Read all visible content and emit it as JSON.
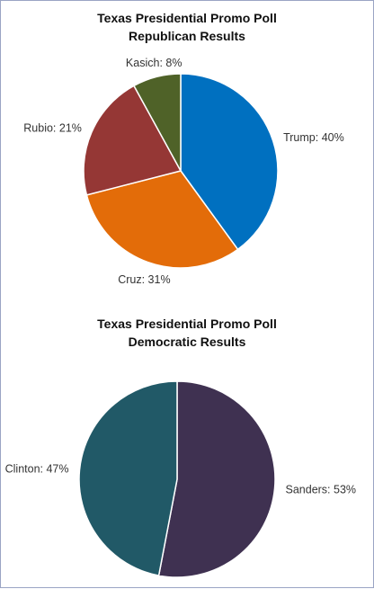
{
  "chart_data": [
    {
      "type": "pie",
      "title_lines": [
        "Texas Presidential Promo Poll",
        "Republican Results"
      ],
      "slices": [
        {
          "name": "Trump",
          "value": 40,
          "label": "Trump: 40%",
          "color": "#0070c0"
        },
        {
          "name": "Cruz",
          "value": 31,
          "label": "Cruz: 31%",
          "color": "#e36c09"
        },
        {
          "name": "Rubio",
          "value": 21,
          "label": "Rubio: 21%",
          "color": "#953735"
        },
        {
          "name": "Kasich",
          "value": 8,
          "label": "Kasich: 8%",
          "color": "#4f6228"
        }
      ],
      "legend": "none"
    },
    {
      "type": "pie",
      "title_lines": [
        "Texas Presidential Promo Poll",
        "Democratic Results"
      ],
      "slices": [
        {
          "name": "Sanders",
          "value": 53,
          "label": "Sanders: 53%",
          "color": "#3f3151"
        },
        {
          "name": "Clinton",
          "value": 47,
          "label": "Clinton: 47%",
          "color": "#215967"
        }
      ],
      "legend": "none"
    }
  ],
  "colors": {
    "border": "#9aa4c4",
    "slice_edge": "#ffffff",
    "label_text": "#333333",
    "title_text": "#111111"
  }
}
